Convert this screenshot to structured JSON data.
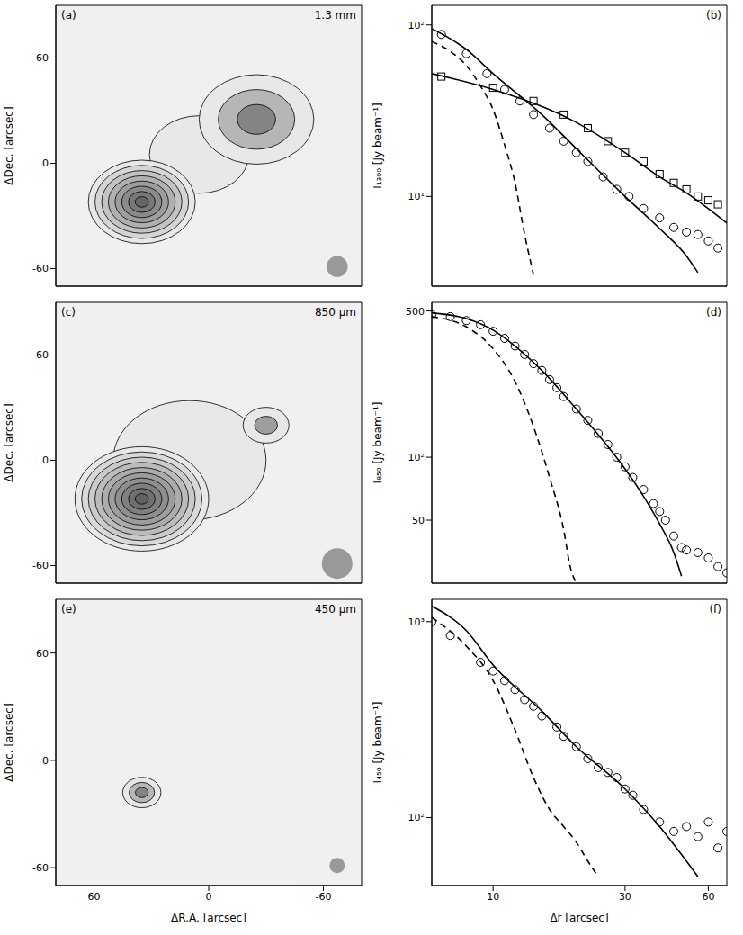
{
  "chart_data": [
    {
      "type": "map",
      "panel": "(a)",
      "annotation": "1.3 mm",
      "y_label": "ΔDec. [arcsec]",
      "xlim": [
        80,
        -80
      ],
      "ylim": [
        -70,
        90
      ],
      "xticks": [
        60,
        0,
        -60
      ],
      "yticks": [
        -60,
        0,
        60
      ],
      "tick_labels": "y",
      "sources": [
        {
          "x": 5,
          "y": 5,
          "size": 26,
          "levels": 1
        },
        {
          "x": -25,
          "y": 25,
          "size": 30,
          "levels": 3
        },
        {
          "x": 35,
          "y": -22,
          "size": 28,
          "levels": 8
        }
      ],
      "beam": 11
    },
    {
      "type": "profile",
      "panel": "(b)",
      "log": true,
      "y_label": "I₁₃₀₀ [Jy beam⁻¹]",
      "xlim": [
        6,
        70
      ],
      "ylim": [
        3,
        130
      ],
      "xticks": [
        10,
        30,
        60
      ],
      "yticks": [
        {
          "value": 10,
          "label": "10¹"
        },
        {
          "value": 100,
          "label": "10²"
        }
      ],
      "tick_labels": "y",
      "series": [
        {
          "type": "scatter",
          "marker": "circle",
          "color": "#000000",
          "x": [
            6.5,
            8,
            9.5,
            11,
            12.5,
            14,
            16,
            18,
            20,
            22,
            25,
            28,
            31,
            35,
            40,
            45,
            50,
            55,
            60,
            65
          ],
          "values": [
            88,
            68,
            52,
            42,
            36,
            30,
            25,
            21,
            18,
            16,
            13,
            11,
            10,
            8.5,
            7.5,
            6.6,
            6.2,
            6,
            5.5,
            5
          ]
        },
        {
          "type": "scatter",
          "marker": "square",
          "color": "#000000",
          "x": [
            6.5,
            10,
            14,
            18,
            22,
            26,
            30,
            35,
            40,
            45,
            50,
            55,
            60,
            65
          ],
          "values": [
            50,
            43,
            36,
            30,
            25,
            21,
            18,
            16,
            13.5,
            12,
            11,
            10,
            9.5,
            9
          ]
        },
        {
          "type": "line",
          "line_style": "solid",
          "color": "#000000",
          "x": [
            6,
            8,
            10,
            15,
            20,
            30,
            40,
            50,
            55
          ],
          "values": [
            95,
            72,
            52,
            30,
            19,
            10,
            6.5,
            4.5,
            3.6
          ]
        },
        {
          "type": "line",
          "line_style": "solid",
          "color": "#000000",
          "x": [
            6,
            10,
            20,
            30,
            40,
            50,
            60,
            70
          ],
          "values": [
            52,
            42,
            27,
            18,
            13,
            10.5,
            8.5,
            7
          ]
        },
        {
          "type": "line",
          "line_style": "dashed",
          "color": "#000000",
          "x": [
            6,
            7,
            8,
            9,
            10,
            11,
            12,
            13,
            14
          ],
          "values": [
            80,
            70,
            58,
            44,
            32,
            20,
            12,
            6,
            3.5
          ]
        }
      ]
    },
    {
      "type": "map",
      "panel": "(c)",
      "annotation": "850 μm",
      "y_label": "ΔDec. [arcsec]",
      "xlim": [
        80,
        -80
      ],
      "ylim": [
        -70,
        90
      ],
      "xticks": [
        60,
        0,
        -60
      ],
      "yticks": [
        -60,
        0,
        60
      ],
      "tick_labels": "y",
      "sources": [
        {
          "x": 10,
          "y": 0,
          "size": 40,
          "levels": 1
        },
        {
          "x": -30,
          "y": 20,
          "size": 12,
          "levels": 2
        },
        {
          "x": 35,
          "y": -22,
          "size": 35,
          "levels": 10
        }
      ],
      "beam": 16
    },
    {
      "type": "profile",
      "panel": "(d)",
      "log": true,
      "y_label": "I₈₅₀ [Jy beam⁻¹]",
      "xlim": [
        6,
        70
      ],
      "ylim": [
        25,
        550
      ],
      "xticks": [
        10,
        30,
        60
      ],
      "yticks": [
        50,
        {
          "value": 100,
          "label": "10²"
        },
        500
      ],
      "tick_labels": "y",
      "series": [
        {
          "type": "scatter",
          "marker": "circle",
          "color": "#000000",
          "x": [
            6,
            7,
            8,
            9,
            10,
            11,
            12,
            13,
            14,
            15,
            16,
            17,
            18,
            20,
            22,
            24,
            26,
            28,
            30,
            32,
            35,
            38,
            40,
            42,
            45,
            48,
            50,
            55,
            60,
            65,
            70
          ],
          "values": [
            480,
            470,
            450,
            430,
            400,
            370,
            340,
            310,
            280,
            260,
            235,
            215,
            195,
            170,
            150,
            130,
            115,
            100,
            90,
            80,
            70,
            60,
            55,
            50,
            42,
            37,
            36,
            35,
            33,
            30,
            28
          ]
        },
        {
          "type": "line",
          "line_style": "solid",
          "color": "#000000",
          "x": [
            6,
            8,
            10,
            12,
            15,
            20,
            25,
            30,
            35,
            40,
            45,
            48
          ],
          "values": [
            490,
            460,
            405,
            340,
            260,
            170,
            120,
            88,
            65,
            48,
            35,
            27
          ]
        },
        {
          "type": "line",
          "line_style": "dashed",
          "color": "#000000",
          "x": [
            6,
            8,
            10,
            12,
            14,
            16,
            18,
            19,
            20
          ],
          "values": [
            470,
            420,
            330,
            230,
            140,
            80,
            45,
            30,
            25
          ]
        }
      ]
    },
    {
      "type": "map",
      "panel": "(e)",
      "annotation": "450 μm",
      "x_label": "ΔR.A. [arcsec]",
      "y_label": "ΔDec. [arcsec]",
      "xlim": [
        80,
        -80
      ],
      "ylim": [
        -70,
        90
      ],
      "xticks": [
        60,
        0,
        -60
      ],
      "yticks": [
        -60,
        0,
        60
      ],
      "sources": [
        {
          "x": 35,
          "y": -18,
          "size": 10,
          "levels": 3
        }
      ],
      "beam": 8
    },
    {
      "type": "profile",
      "panel": "(f)",
      "log": true,
      "x_label": "Δr [arcsec]",
      "y_label": "I₄₅₀ [Jy beam⁻¹]",
      "xlim": [
        6,
        70
      ],
      "ylim": [
        45,
        1300
      ],
      "xticks": [
        10,
        30,
        60
      ],
      "yticks": [
        {
          "value": 100,
          "label": "10²"
        },
        {
          "value": 1000,
          "label": "10³"
        }
      ],
      "series": [
        {
          "type": "scatter",
          "marker": "circle",
          "color": "#000000",
          "x": [
            6,
            7,
            9,
            10,
            11,
            12,
            13,
            14,
            15,
            17,
            18,
            20,
            22,
            24,
            26,
            28,
            30,
            32,
            35,
            40,
            45,
            50,
            55,
            60,
            65,
            70
          ],
          "values": [
            1000,
            850,
            620,
            560,
            500,
            450,
            400,
            370,
            330,
            290,
            260,
            230,
            200,
            180,
            170,
            160,
            140,
            130,
            110,
            95,
            85,
            90,
            80,
            95,
            70,
            85
          ]
        },
        {
          "type": "line",
          "line_style": "solid",
          "color": "#000000",
          "x": [
            6,
            8,
            10,
            15,
            20,
            30,
            40,
            50,
            55
          ],
          "values": [
            1200,
            900,
            600,
            350,
            230,
            140,
            90,
            60,
            50
          ]
        },
        {
          "type": "line",
          "line_style": "dashed",
          "color": "#000000",
          "x": [
            6,
            8,
            10,
            12,
            14,
            16,
            18,
            20,
            22,
            24
          ],
          "values": [
            1050,
            750,
            500,
            280,
            160,
            110,
            90,
            75,
            60,
            50
          ]
        }
      ]
    }
  ]
}
